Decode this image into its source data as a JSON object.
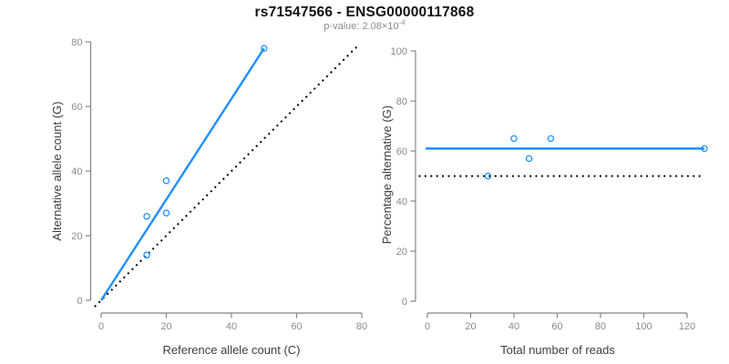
{
  "figure": {
    "title": "rs71547566 - ENSG00000117868",
    "subtitle_prefix": "p-value: 2.08×10",
    "subtitle_exponent": "-4"
  },
  "colors": {
    "accent_blue": "#1E90FF",
    "reference_black": "#000000",
    "axis_gray": "#858585",
    "tick_label_gray": "#8a8a8a",
    "axis_title_dark": "#3d3d3d",
    "background": "#FFFFFF"
  },
  "chart_data": [
    {
      "type": "scatter",
      "panel": "left",
      "xlabel": "Reference allele count (C)",
      "ylabel": "Alternative allele count (G)",
      "xlim": [
        0,
        80
      ],
      "ylim": [
        0,
        80
      ],
      "xticks": [
        0,
        20,
        40,
        60,
        80
      ],
      "yticks": [
        0,
        20,
        40,
        60,
        80
      ],
      "marker": "open-circle",
      "marker_color": "#1E90FF",
      "points": [
        [
          14,
          14
        ],
        [
          14,
          26
        ],
        [
          20,
          27
        ],
        [
          20,
          37
        ],
        [
          50,
          78
        ]
      ],
      "lines": [
        {
          "name": "identity-line",
          "meaning": "y = x (balanced alleles)",
          "style": "dotted",
          "color": "#000000",
          "from": [
            -2,
            -2
          ],
          "to": [
            79,
            79
          ]
        },
        {
          "name": "fit-line",
          "meaning": "fitted allelic imbalance line",
          "style": "solid",
          "color": "#1E90FF",
          "from": [
            0,
            0
          ],
          "to": [
            50,
            78
          ]
        }
      ],
      "grid": false,
      "legend": null
    },
    {
      "type": "scatter",
      "panel": "right",
      "xlabel": "Total number of reads",
      "ylabel": "Percentage alternative (G)",
      "xlim": [
        0,
        128
      ],
      "ylim": [
        0,
        100
      ],
      "xticks": [
        0,
        20,
        40,
        60,
        80,
        100,
        120
      ],
      "yticks": [
        0,
        20,
        40,
        60,
        80,
        100
      ],
      "marker": "open-circle",
      "marker_color": "#1E90FF",
      "points": [
        [
          28,
          50
        ],
        [
          40,
          65
        ],
        [
          47,
          57
        ],
        [
          57,
          65
        ],
        [
          128,
          61
        ]
      ],
      "lines": [
        {
          "name": "null-line",
          "meaning": "50% reference expectation",
          "style": "dotted",
          "color": "#000000",
          "from": [
            -4,
            50
          ],
          "to": [
            126.5,
            50
          ]
        },
        {
          "name": "fit-line",
          "meaning": "estimated alternative percentage 61%",
          "style": "solid",
          "color": "#1E90FF",
          "from": [
            -0.8,
            61
          ],
          "to": [
            128,
            61
          ]
        }
      ],
      "grid": false,
      "legend": null
    }
  ]
}
